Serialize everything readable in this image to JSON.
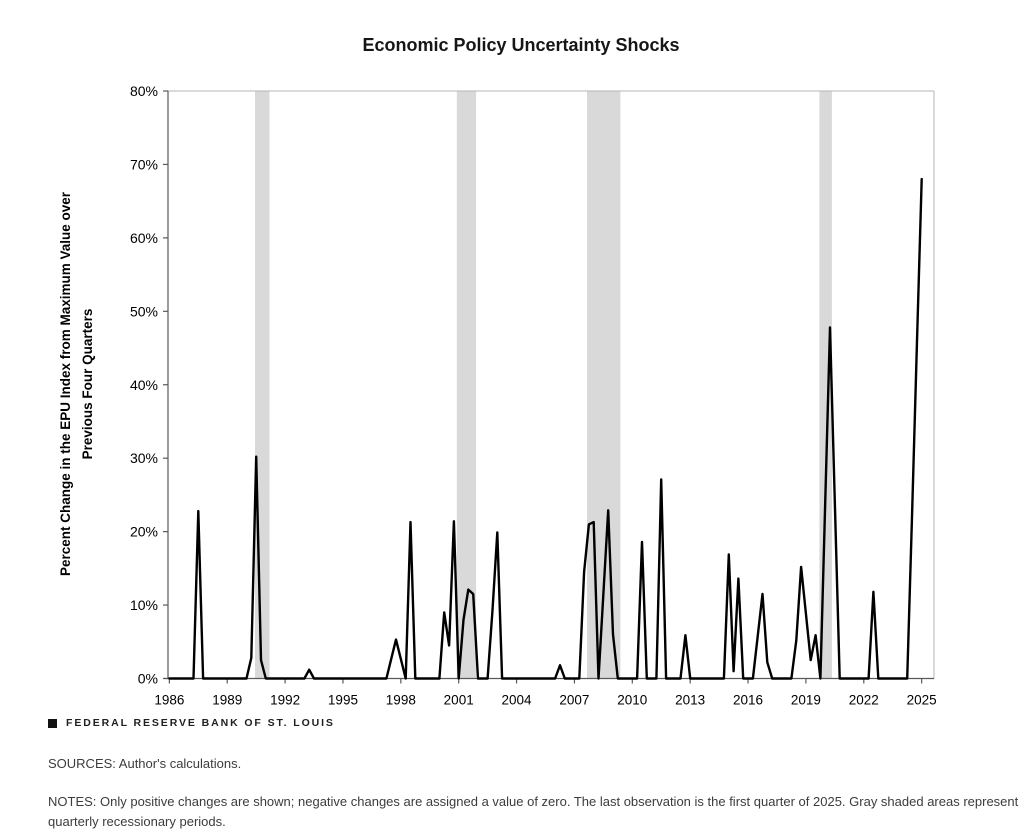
{
  "chart": {
    "title": "Economic Policy Uncertainty Shocks",
    "y_axis_title_line1": "Percent Change in the EPU Index from Maximum Value over",
    "y_axis_title_line2": "Previous Four Quarters"
  },
  "chart_data": {
    "type": "line",
    "title": "Economic Policy Uncertainty Shocks",
    "xlabel": "",
    "ylabel": "Percent Change in the EPU Index from Maximum Value over Previous Four Quarters",
    "x_unit": "year (decimal; quarter starts at .0 .25 .5 .75)",
    "y_unit": "percent",
    "xlim": [
      1985.93,
      2025.64
    ],
    "ylim": [
      0,
      80
    ],
    "x_ticks": [
      1986,
      1989,
      1992,
      1995,
      1998,
      2001,
      2004,
      2007,
      2010,
      2013,
      2016,
      2019,
      2022,
      2025
    ],
    "y_ticks": [
      0,
      10,
      20,
      30,
      40,
      50,
      60,
      70,
      80
    ],
    "y_tick_suffix": "%",
    "grid": false,
    "legend": false,
    "line_points": [
      [
        1986.0,
        0
      ],
      [
        1987.25,
        0
      ],
      [
        1987.5,
        22.8
      ],
      [
        1987.75,
        0
      ],
      [
        1990.0,
        0
      ],
      [
        1990.25,
        2.8
      ],
      [
        1990.5,
        30.2
      ],
      [
        1990.75,
        2.5
      ],
      [
        1991.0,
        0
      ],
      [
        1993.0,
        0
      ],
      [
        1993.25,
        1.2
      ],
      [
        1993.5,
        0
      ],
      [
        1997.25,
        0
      ],
      [
        1997.75,
        5.3
      ],
      [
        1998.25,
        0
      ],
      [
        1998.5,
        21.3
      ],
      [
        1998.75,
        0
      ],
      [
        2000.0,
        0
      ],
      [
        2000.25,
        9.0
      ],
      [
        2000.5,
        4.5
      ],
      [
        2000.75,
        21.4
      ],
      [
        2001.0,
        0
      ],
      [
        2001.25,
        8.0
      ],
      [
        2001.5,
        12.1
      ],
      [
        2001.75,
        11.5
      ],
      [
        2002.0,
        0
      ],
      [
        2002.5,
        0
      ],
      [
        2002.75,
        9.3
      ],
      [
        2003.0,
        19.9
      ],
      [
        2003.25,
        0
      ],
      [
        2006.0,
        0
      ],
      [
        2006.25,
        1.8
      ],
      [
        2006.5,
        0
      ],
      [
        2007.25,
        0
      ],
      [
        2007.5,
        14.5
      ],
      [
        2007.75,
        21.0
      ],
      [
        2008.0,
        21.3
      ],
      [
        2008.25,
        0
      ],
      [
        2008.75,
        22.9
      ],
      [
        2009.0,
        6.0
      ],
      [
        2009.25,
        0
      ],
      [
        2010.25,
        0
      ],
      [
        2010.5,
        18.6
      ],
      [
        2010.75,
        0
      ],
      [
        2011.25,
        0
      ],
      [
        2011.5,
        27.1
      ],
      [
        2011.75,
        0
      ],
      [
        2012.5,
        0
      ],
      [
        2012.75,
        5.9
      ],
      [
        2013.0,
        0
      ],
      [
        2014.75,
        0
      ],
      [
        2015.0,
        16.9
      ],
      [
        2015.25,
        1.0
      ],
      [
        2015.5,
        13.6
      ],
      [
        2015.75,
        0
      ],
      [
        2016.25,
        0
      ],
      [
        2016.75,
        11.5
      ],
      [
        2017.0,
        2.2
      ],
      [
        2017.25,
        0
      ],
      [
        2018.25,
        0
      ],
      [
        2018.5,
        5.2
      ],
      [
        2018.75,
        15.2
      ],
      [
        2019.25,
        2.5
      ],
      [
        2019.5,
        5.9
      ],
      [
        2019.75,
        0
      ],
      [
        2020.25,
        47.8
      ],
      [
        2020.75,
        0
      ],
      [
        2022.25,
        0
      ],
      [
        2022.5,
        11.8
      ],
      [
        2022.75,
        0
      ],
      [
        2024.25,
        0
      ],
      [
        2024.5,
        22.0
      ],
      [
        2024.75,
        45.0
      ],
      [
        2025.0,
        68.0
      ]
    ],
    "recession_bands": [
      [
        1990.44,
        1991.19
      ],
      [
        2000.9,
        2001.9
      ],
      [
        2007.65,
        2009.38
      ],
      [
        2019.7,
        2020.35
      ]
    ],
    "colors": {
      "line": "#000000",
      "recession_band": "#d9d9d9",
      "axis": "#595959",
      "frame": "#b5b5b5",
      "background": "#ffffff"
    }
  },
  "footer": {
    "branding": "FEDERAL RESERVE BANK OF ST. LOUIS",
    "sources": "SOURCES: Author's calculations.",
    "notes": "NOTES: Only positive changes are shown; negative changes are assigned a value of zero. The last observation is the first quarter of 2025. Gray shaded areas represent quarterly recessionary periods."
  }
}
